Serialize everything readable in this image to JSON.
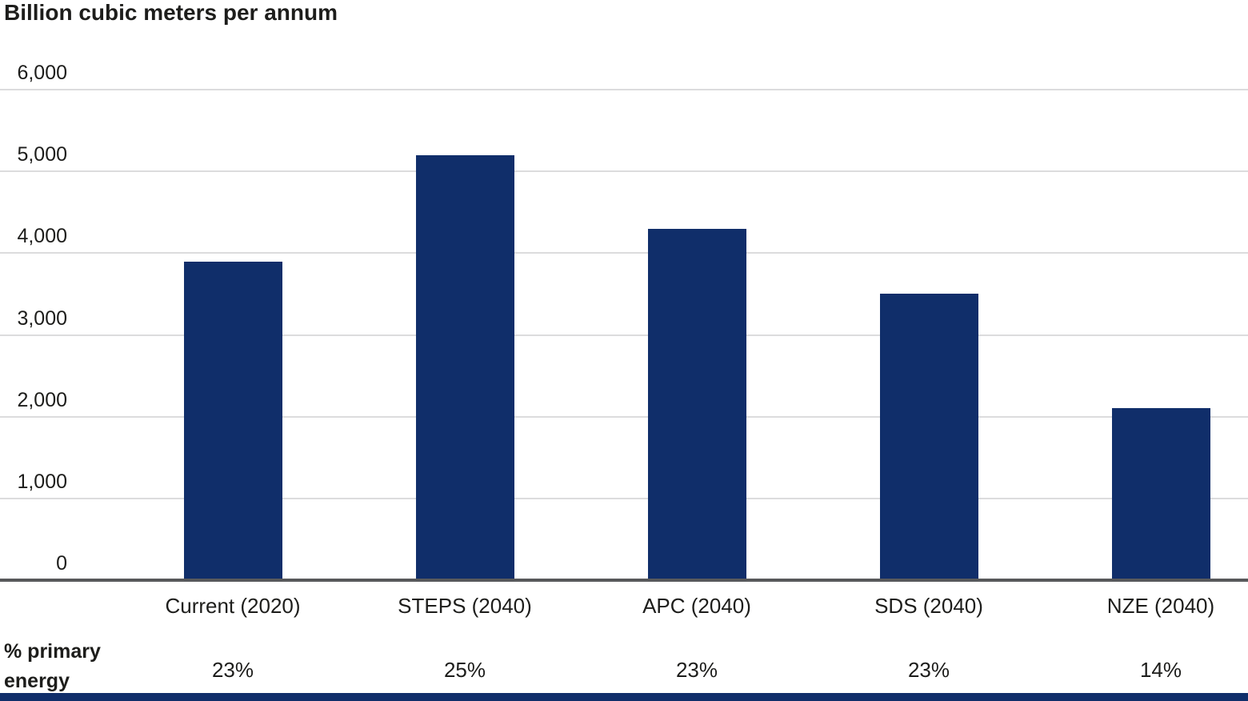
{
  "chart_data": {
    "type": "bar",
    "title": "Billion cubic meters per annum",
    "categories": [
      "Current (2020)",
      "STEPS (2040)",
      "APC (2040)",
      "SDS (2040)",
      "NZE (2040)"
    ],
    "values": [
      3900,
      5200,
      4300,
      3500,
      2100
    ],
    "xlabel": "",
    "ylabel": "Billion cubic meters per annum",
    "ylim": [
      0,
      6000
    ],
    "y_tick_values": [
      0,
      1000,
      2000,
      3000,
      4000,
      5000,
      6000
    ],
    "y_tick_labels": [
      "0",
      "1,000",
      "2,000",
      "3,000",
      "4,000",
      "5,000",
      "6,000"
    ],
    "grid": "horizontal-on",
    "legend": "none",
    "footer_row": {
      "label": "% primary energy",
      "values": [
        "23%",
        "25%",
        "23%",
        "23%",
        "14%"
      ]
    },
    "colors": {
      "bar": "#102e6a",
      "gridline": "#dcdcdd",
      "axis_line": "#58595b",
      "text": "#1d1d1b",
      "bottom_strip": "#102e6a"
    }
  }
}
